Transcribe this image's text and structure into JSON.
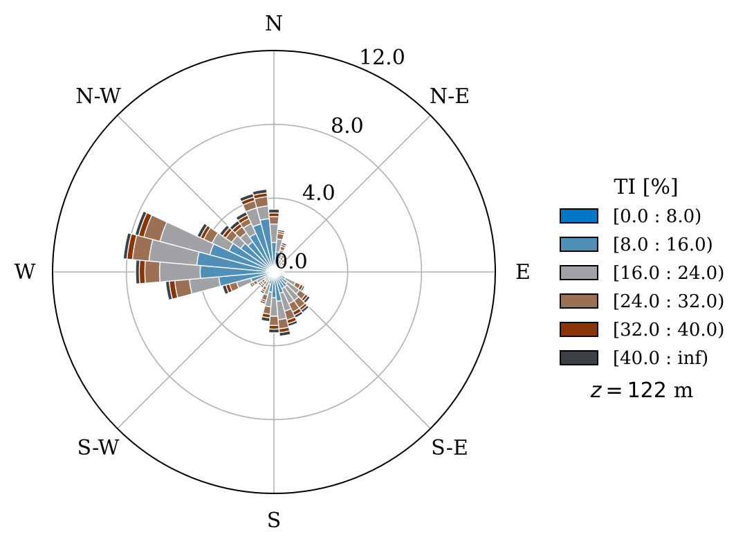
{
  "chart_data": {
    "type": "windrose",
    "directions": [
      "N",
      "N-E",
      "E",
      "S-E",
      "S",
      "S-W",
      "W",
      "N-W"
    ],
    "radial_ticks": [
      "0.0",
      "4.0",
      "8.0",
      "12.0"
    ],
    "radial_max": 12.0,
    "sector_count": 36,
    "legend_title": "TI [%]",
    "legend_position": "right",
    "annotation": {
      "var": "z",
      "eq": "=",
      "value": "122",
      "unit": "m"
    },
    "bins": [
      {
        "label": "[0.0 : 8.0)",
        "color": "#0077c8"
      },
      {
        "label": "[8.0 : 16.0)",
        "color": "#5090b8"
      },
      {
        "label": "[16.0 : 24.0)",
        "color": "#a0a2a5"
      },
      {
        "label": "[24.0 : 32.0)",
        "color": "#9b7055"
      },
      {
        "label": "[32.0 : 40.0)",
        "color": "#8a3505"
      },
      {
        "label": "[40.0 : inf)",
        "color": "#3a4145"
      }
    ],
    "sectors": [
      {
        "angle": 0,
        "values": [
          0.2,
          1.4,
          1.0,
          0.4,
          0.2,
          0.2
        ]
      },
      {
        "angle": 10,
        "values": [
          0.1,
          1.0,
          0.7,
          0.3,
          0.1,
          0.1
        ]
      },
      {
        "angle": 20,
        "values": [
          0.05,
          0.7,
          0.5,
          0.2,
          0.1,
          0.1
        ]
      },
      {
        "angle": 30,
        "values": [
          0.05,
          0.4,
          0.3,
          0.15,
          0.1,
          0.1
        ]
      },
      {
        "angle": 40,
        "values": [
          0.05,
          0.35,
          0.3,
          0.15,
          0.05,
          0.05
        ]
      },
      {
        "angle": 50,
        "values": [
          0.05,
          0.2,
          0.3,
          0.15,
          0.05,
          0.05
        ]
      },
      {
        "angle": 60,
        "values": [
          0.05,
          0.15,
          0.2,
          0.1,
          0.05,
          0.05
        ]
      },
      {
        "angle": 70,
        "values": [
          0.05,
          0.15,
          0.2,
          0.1,
          0.05,
          0.05
        ]
      },
      {
        "angle": 80,
        "values": [
          0.05,
          0.15,
          0.2,
          0.1,
          0.05,
          0.05
        ]
      },
      {
        "angle": 90,
        "values": [
          0.05,
          0.1,
          0.15,
          0.1,
          0.05,
          0.05
        ]
      },
      {
        "angle": 100,
        "values": [
          0.05,
          0.15,
          0.2,
          0.1,
          0.05,
          0.05
        ]
      },
      {
        "angle": 110,
        "values": [
          0.05,
          0.2,
          0.25,
          0.1,
          0.05,
          0.05
        ]
      },
      {
        "angle": 120,
        "values": [
          0.1,
          0.6,
          0.6,
          0.3,
          0.15,
          0.1
        ]
      },
      {
        "angle": 130,
        "values": [
          0.1,
          0.8,
          0.8,
          0.4,
          0.15,
          0.15
        ]
      },
      {
        "angle": 140,
        "values": [
          0.1,
          0.9,
          0.9,
          0.5,
          0.15,
          0.15
        ]
      },
      {
        "angle": 150,
        "values": [
          0.1,
          0.9,
          0.9,
          0.5,
          0.2,
          0.15
        ]
      },
      {
        "angle": 160,
        "values": [
          0.1,
          1.1,
          1.0,
          0.5,
          0.2,
          0.15
        ]
      },
      {
        "angle": 170,
        "values": [
          0.2,
          1.4,
          1.0,
          0.5,
          0.2,
          0.2
        ]
      },
      {
        "angle": 180,
        "values": [
          0.2,
          1.2,
          1.0,
          0.5,
          0.2,
          0.2
        ]
      },
      {
        "angle": 190,
        "values": [
          0.1,
          1.0,
          0.8,
          0.4,
          0.2,
          0.2
        ]
      },
      {
        "angle": 200,
        "values": [
          0.1,
          0.6,
          0.6,
          0.3,
          0.1,
          0.1
        ]
      },
      {
        "angle": 210,
        "values": [
          0.1,
          0.4,
          0.4,
          0.2,
          0.1,
          0.1
        ]
      },
      {
        "angle": 220,
        "values": [
          0.05,
          0.3,
          0.3,
          0.2,
          0.1,
          0.1
        ]
      },
      {
        "angle": 230,
        "values": [
          0.05,
          0.3,
          0.3,
          0.2,
          0.1,
          0.1
        ]
      },
      {
        "angle": 240,
        "values": [
          0.05,
          0.5,
          0.5,
          0.2,
          0.1,
          0.1
        ]
      },
      {
        "angle": 250,
        "values": [
          0.1,
          1.2,
          0.8,
          0.4,
          0.2,
          0.2
        ]
      },
      {
        "angle": 260,
        "values": [
          0.2,
          2.8,
          1.6,
          0.8,
          0.3,
          0.2
        ]
      },
      {
        "angle": 270,
        "values": [
          0.4,
          3.6,
          2.2,
          0.8,
          0.3,
          0.2
        ]
      },
      {
        "angle": 280,
        "values": [
          0.4,
          3.8,
          2.6,
          0.9,
          0.3,
          0.2
        ]
      },
      {
        "angle": 290,
        "values": [
          0.4,
          3.2,
          2.8,
          0.9,
          0.3,
          0.2
        ]
      },
      {
        "angle": 300,
        "values": [
          0.3,
          2.4,
          1.0,
          0.5,
          0.2,
          0.2
        ]
      },
      {
        "angle": 310,
        "values": [
          0.2,
          2.0,
          0.6,
          0.4,
          0.2,
          0.2
        ]
      },
      {
        "angle": 320,
        "values": [
          0.2,
          1.8,
          0.6,
          0.4,
          0.2,
          0.2
        ]
      },
      {
        "angle": 330,
        "values": [
          0.3,
          2.0,
          0.6,
          0.3,
          0.2,
          0.2
        ]
      },
      {
        "angle": 340,
        "values": [
          0.3,
          2.4,
          0.9,
          0.4,
          0.2,
          0.2
        ]
      },
      {
        "angle": 350,
        "values": [
          0.3,
          2.6,
          0.7,
          0.5,
          0.2,
          0.2
        ]
      }
    ]
  }
}
